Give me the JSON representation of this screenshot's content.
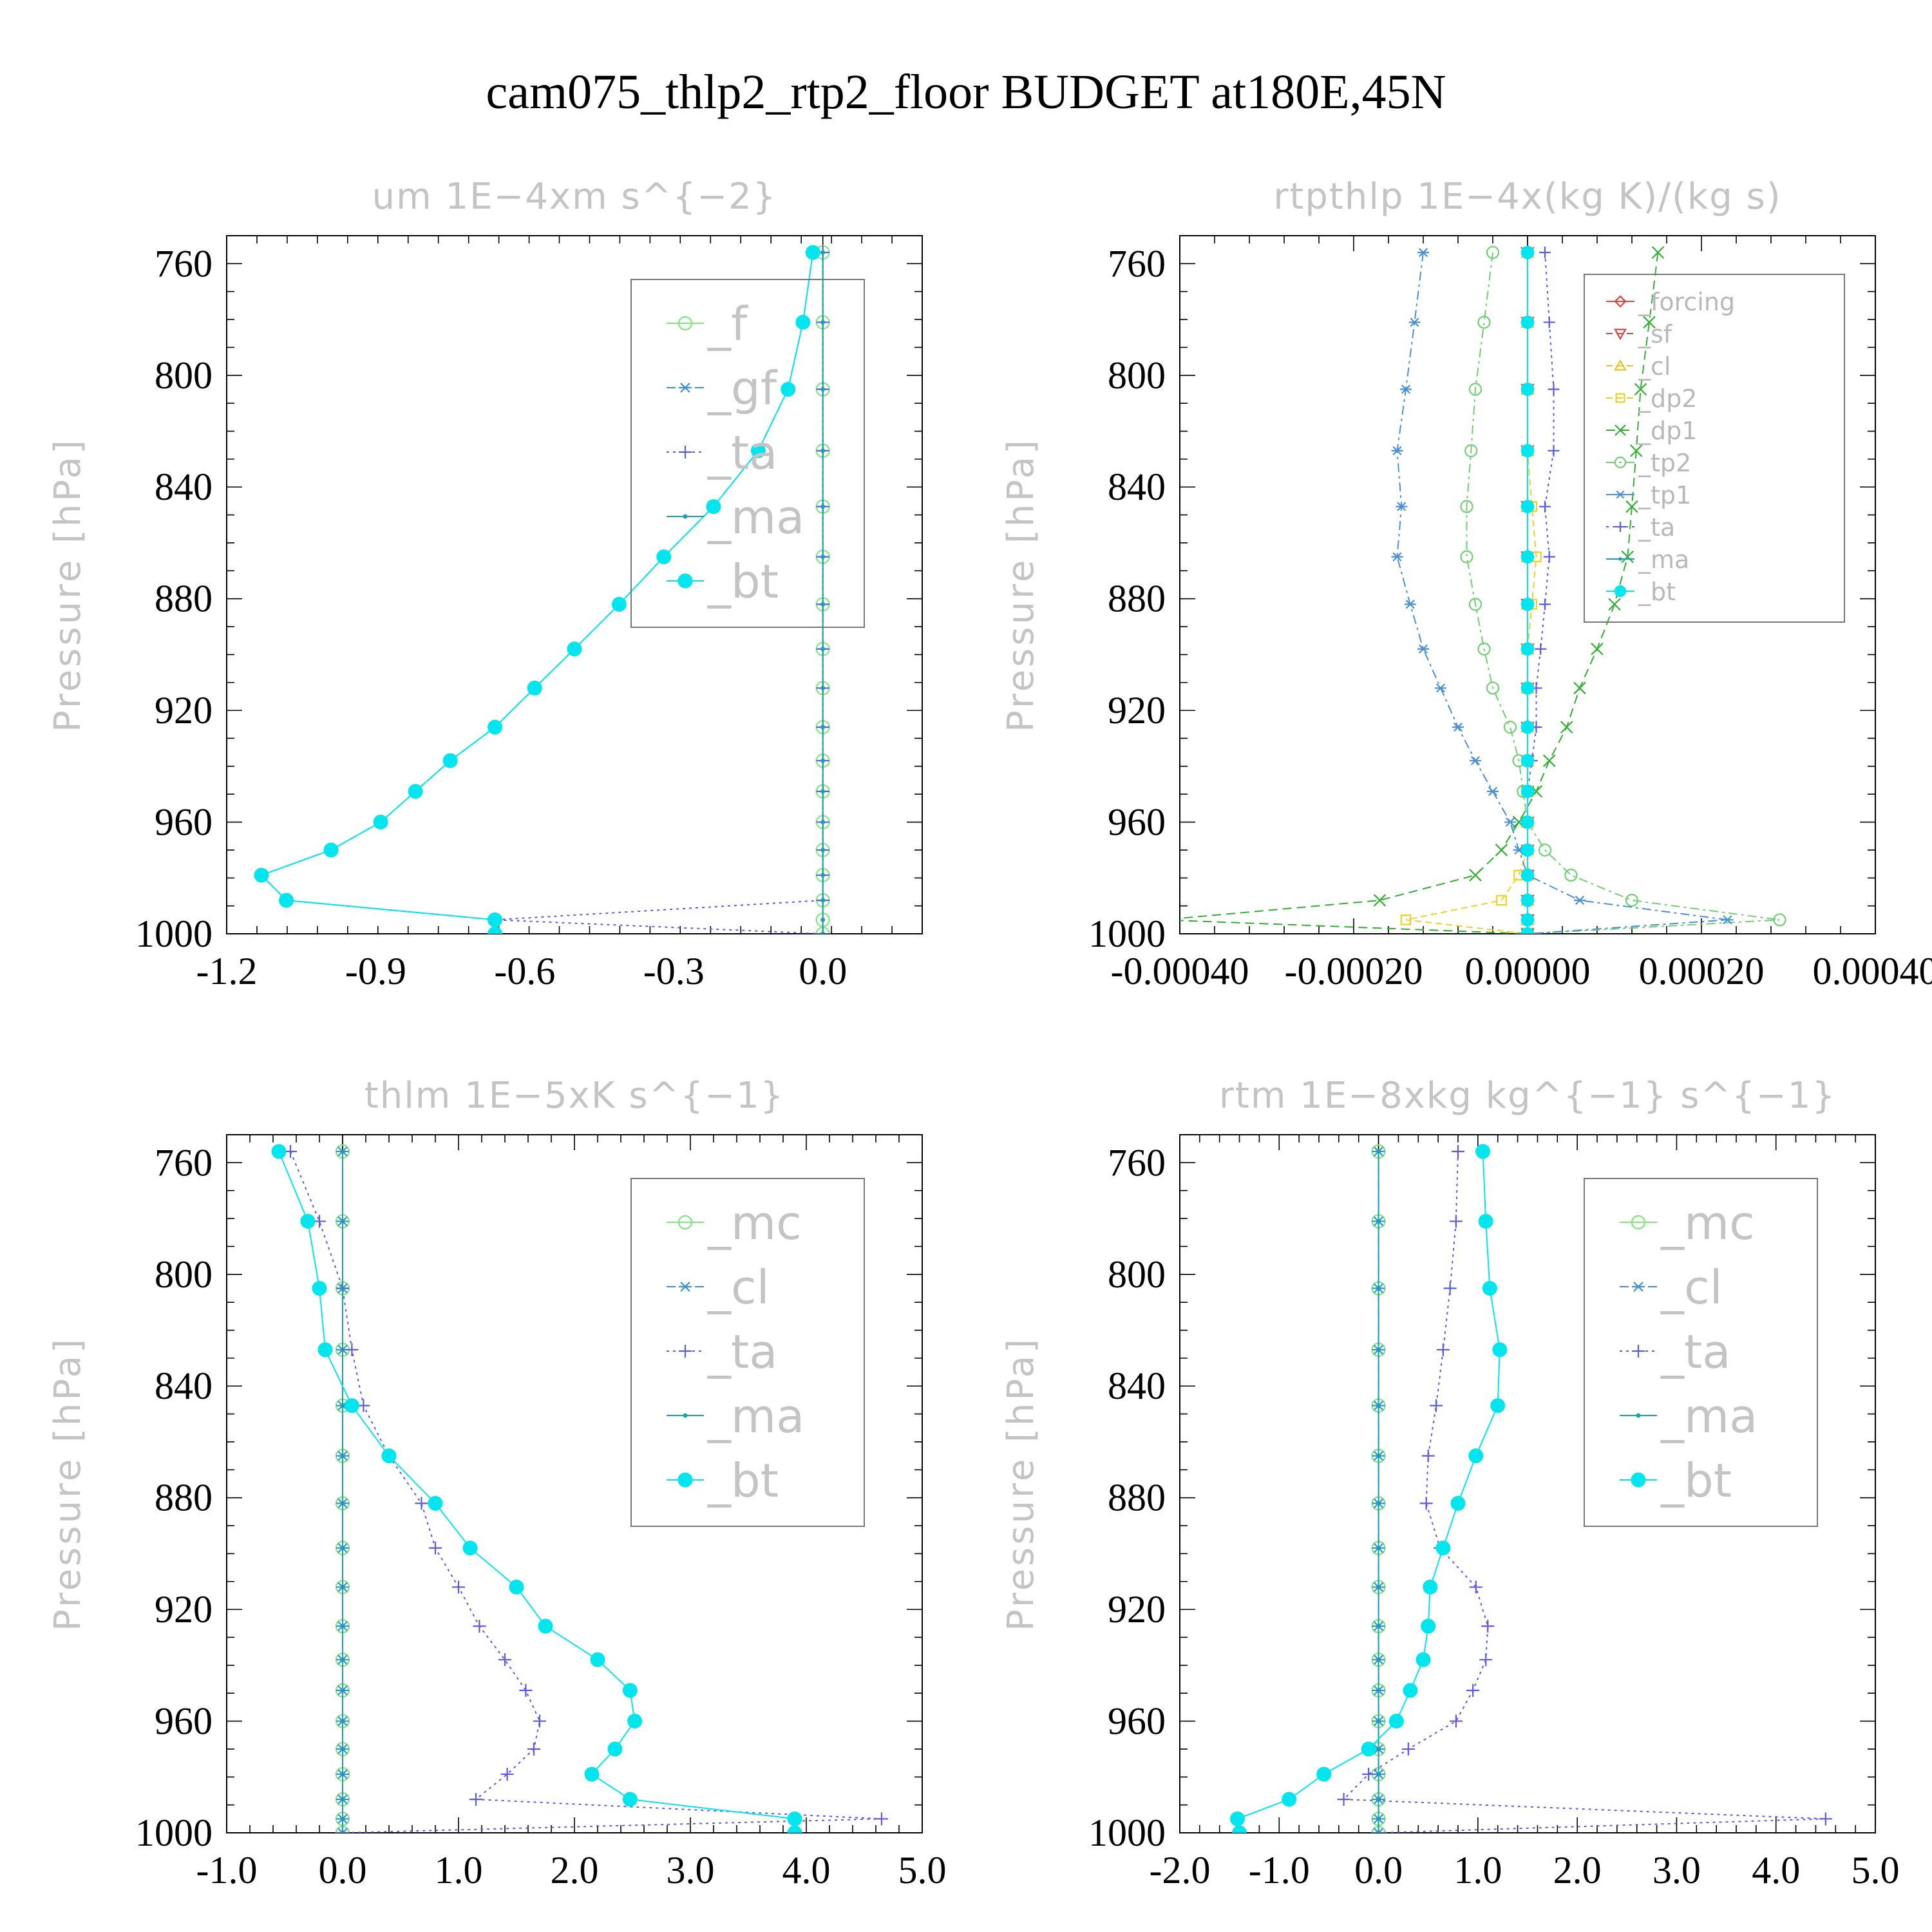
{
  "figure": {
    "title": "cam075_thlp2_rtp2_floor  BUDGET at180E,45N"
  },
  "chart_data": [
    {
      "type": "line",
      "title": "um   1E−4xm s^{−2}",
      "ylabel": "Pressure [hPa]",
      "xlabel": "",
      "xlim": [
        -1.2,
        0.2
      ],
      "ylim": [
        1000,
        750
      ],
      "xticks": [
        -1.2,
        -0.9,
        -0.6,
        -0.3,
        0.0
      ],
      "xtick_labels": [
        "-1.2",
        "-0.9",
        "-0.6",
        "-0.3",
        "0.0"
      ],
      "yticks": [
        760,
        800,
        840,
        880,
        920,
        960,
        1000
      ],
      "ytick_labels": [
        "760",
        "800",
        "840",
        "880",
        "920",
        "960",
        "1000"
      ],
      "legend_position": "top-right",
      "legend_style": "large",
      "pressure_levels": [
        756,
        781,
        805,
        827,
        847,
        865,
        882,
        898,
        912,
        926,
        938,
        949,
        960,
        970,
        979,
        988,
        995,
        1000
      ],
      "series": [
        {
          "name": "_f",
          "color": "#7ee87e",
          "marker": "circle-open",
          "dash": "",
          "values": [
            0,
            0,
            0,
            0,
            0,
            0,
            0,
            0,
            0,
            0,
            0,
            0,
            0,
            0,
            0,
            0,
            0,
            0
          ]
        },
        {
          "name": "_gf",
          "color": "#3b8fd6",
          "marker": "star",
          "dash": "14,8",
          "values": [
            -0.02,
            -0.04,
            -0.07,
            -0.13,
            -0.22,
            -0.32,
            -0.41,
            -0.5,
            -0.58,
            -0.66,
            -0.75,
            -0.82,
            -0.89,
            -0.99,
            -1.13,
            -1.08,
            -0.66,
            -0.66
          ]
        },
        {
          "name": "_ta",
          "color": "#5a5ae6",
          "marker": "plus",
          "dash": "4,6",
          "values": [
            0,
            0,
            0,
            0,
            0,
            0,
            0,
            0,
            0,
            0,
            0,
            0,
            0,
            0,
            0,
            0,
            -0.66,
            0
          ]
        },
        {
          "name": "_ma",
          "color": "#1aa0b0",
          "marker": "dot",
          "dash": "",
          "values": [
            0,
            0,
            0,
            0,
            0,
            0,
            0,
            0,
            0,
            0,
            0,
            0,
            0,
            0,
            0,
            0,
            0,
            0
          ]
        },
        {
          "name": "_bt",
          "color": "#00e5ee",
          "marker": "filled",
          "dash": "",
          "values": [
            -0.02,
            -0.04,
            -0.07,
            -0.13,
            -0.22,
            -0.32,
            -0.41,
            -0.5,
            -0.58,
            -0.66,
            -0.75,
            -0.82,
            -0.89,
            -0.99,
            -1.13,
            -1.08,
            -0.66,
            -0.66
          ]
        }
      ]
    },
    {
      "type": "line",
      "title": "rtpthlp   1E−4x(kg K)/(kg s)",
      "ylabel": "Pressure [hPa]",
      "xlabel": "",
      "xlim": [
        -0.0004,
        0.0004
      ],
      "ylim": [
        1000,
        750
      ],
      "xticks": [
        -0.0004,
        -0.0002,
        0.0,
        0.0002,
        0.0004
      ],
      "xtick_labels": [
        "-0.00040",
        "-0.00020",
        "0.00000",
        "0.00020",
        "0.00040"
      ],
      "yticks": [
        760,
        800,
        840,
        880,
        920,
        960,
        1000
      ],
      "ytick_labels": [
        "760",
        "800",
        "840",
        "880",
        "920",
        "960",
        "1000"
      ],
      "legend_position": "top-right",
      "legend_style": "small",
      "pressure_levels": [
        756,
        781,
        805,
        827,
        847,
        865,
        882,
        898,
        912,
        926,
        938,
        949,
        960,
        970,
        979,
        988,
        995,
        1000
      ],
      "series": [
        {
          "name": "_forcing",
          "color": "#e04040",
          "marker": "diamond-open",
          "dash": "",
          "values": [
            0,
            0,
            0,
            0,
            0,
            0,
            0,
            0,
            0,
            0,
            0,
            0,
            0,
            0,
            0,
            0,
            0,
            0
          ]
        },
        {
          "name": "_sf",
          "color": "#e04040",
          "marker": "triangle-down-open",
          "dash": "10,6",
          "values": [
            0,
            0,
            0,
            0,
            0,
            0,
            0,
            0,
            0,
            0,
            0,
            0,
            0,
            0,
            0,
            0,
            0,
            0
          ]
        },
        {
          "name": "_cl",
          "color": "#f0c020",
          "marker": "triangle-open",
          "dash": "10,6",
          "values": [
            0,
            0,
            0,
            0,
            0,
            0,
            0,
            0,
            0,
            0,
            0,
            0,
            0,
            0,
            0,
            0,
            0,
            0
          ]
        },
        {
          "name": "_dp2",
          "color": "#f0d020",
          "marker": "square-open",
          "dash": "10,6",
          "values": [
            0,
            0,
            0,
            0,
            5e-06,
            1e-05,
            5e-06,
            0,
            0,
            0,
            0,
            0,
            0,
            0,
            -1e-05,
            -3e-05,
            -0.00014,
            0
          ]
        },
        {
          "name": "_dp1",
          "color": "#30b030",
          "marker": "x",
          "dash": "14,8",
          "values": [
            0.00015,
            0.00014,
            0.00013,
            0.000125,
            0.00012,
            0.000115,
            0.0001,
            8e-05,
            6e-05,
            4.5e-05,
            2.5e-05,
            1e-05,
            -1e-05,
            -3e-05,
            -6e-05,
            -0.00017,
            -0.00042,
            0
          ]
        },
        {
          "name": "_tp2",
          "color": "#70d070",
          "marker": "circle-open",
          "dash": "14,6,4,6",
          "values": [
            -4e-05,
            -5e-05,
            -6e-05,
            -6.5e-05,
            -7e-05,
            -7e-05,
            -6e-05,
            -5e-05,
            -4e-05,
            -2e-05,
            -1e-05,
            -5e-06,
            0,
            2e-05,
            5e-05,
            0.00012,
            0.00029,
            0
          ]
        },
        {
          "name": "_tp1",
          "color": "#4a90d9",
          "marker": "star",
          "dash": "14,6,4,6",
          "values": [
            -0.00012,
            -0.00013,
            -0.00014,
            -0.00015,
            -0.000145,
            -0.00015,
            -0.000135,
            -0.00012,
            -0.0001,
            -8e-05,
            -6e-05,
            -4e-05,
            -2e-05,
            -1e-05,
            0,
            6e-05,
            0.00023,
            0
          ]
        },
        {
          "name": "_ta",
          "color": "#5a5ae6",
          "marker": "plus",
          "dash": "4,6",
          "values": [
            2e-05,
            2.5e-05,
            3e-05,
            3e-05,
            2e-05,
            2.5e-05,
            2e-05,
            1.5e-05,
            1e-05,
            1e-05,
            5e-06,
            0,
            0,
            0,
            0,
            0,
            0,
            0
          ]
        },
        {
          "name": "_ma",
          "color": "#1aa0b0",
          "marker": "dot",
          "dash": "",
          "values": [
            0,
            0,
            0,
            0,
            0,
            0,
            0,
            0,
            0,
            0,
            0,
            0,
            0,
            0,
            0,
            0,
            0,
            0
          ]
        },
        {
          "name": "_bt",
          "color": "#00e5ee",
          "marker": "filled",
          "dash": "",
          "values": [
            0,
            0,
            0,
            0,
            0,
            0,
            0,
            0,
            0,
            0,
            0,
            0,
            0,
            0,
            0,
            0,
            0,
            0
          ]
        }
      ]
    },
    {
      "type": "line",
      "title": "thlm   1E−5xK s^{−1}",
      "ylabel": "Pressure [hPa]",
      "xlabel": "",
      "xlim": [
        -1.0,
        5.0
      ],
      "ylim": [
        1000,
        750
      ],
      "xticks": [
        -1.0,
        0.0,
        1.0,
        2.0,
        3.0,
        4.0,
        5.0
      ],
      "xtick_labels": [
        "-1.0",
        "0.0",
        "1.0",
        "2.0",
        "3.0",
        "4.0",
        "5.0"
      ],
      "yticks": [
        760,
        800,
        840,
        880,
        920,
        960,
        1000
      ],
      "ytick_labels": [
        "760",
        "800",
        "840",
        "880",
        "920",
        "960",
        "1000"
      ],
      "legend_position": "top-right",
      "legend_style": "large",
      "pressure_levels": [
        756,
        781,
        805,
        827,
        847,
        865,
        882,
        898,
        912,
        926,
        938,
        949,
        960,
        970,
        979,
        988,
        995,
        1000
      ],
      "series": [
        {
          "name": "_mc",
          "color": "#7ee87e",
          "marker": "circle-open",
          "dash": "",
          "values": [
            0,
            0,
            0,
            0,
            0,
            0,
            0,
            0,
            0,
            0,
            0,
            0,
            0,
            0,
            0,
            0,
            0,
            0
          ]
        },
        {
          "name": "_cl",
          "color": "#3b8fd6",
          "marker": "star",
          "dash": "14,8",
          "values": [
            0,
            0,
            0,
            0,
            0,
            0,
            0,
            0,
            0,
            0,
            0,
            0,
            0,
            0,
            0,
            0,
            0,
            0
          ]
        },
        {
          "name": "_ta",
          "color": "#5a5ae6",
          "marker": "plus",
          "dash": "4,6",
          "values": [
            -0.45,
            -0.2,
            0.0,
            0.08,
            0.18,
            0.4,
            0.68,
            0.8,
            1.0,
            1.18,
            1.4,
            1.58,
            1.7,
            1.65,
            1.42,
            1.15,
            4.65,
            0
          ]
        },
        {
          "name": "_ma",
          "color": "#1aa0b0",
          "marker": "dot",
          "dash": "",
          "values": [
            0,
            0,
            0,
            0,
            0,
            0,
            0,
            0,
            0,
            0,
            0,
            0,
            0,
            0,
            0,
            0,
            0,
            0
          ]
        },
        {
          "name": "_bt",
          "color": "#00e5ee",
          "marker": "filled",
          "dash": "",
          "values": [
            -0.55,
            -0.3,
            -0.2,
            -0.15,
            0.08,
            0.4,
            0.8,
            1.1,
            1.5,
            1.75,
            2.2,
            2.48,
            2.52,
            2.35,
            2.15,
            2.48,
            3.9,
            3.9
          ]
        }
      ]
    },
    {
      "type": "line",
      "title": "rtm   1E−8xkg kg^{−1} s^{−1}",
      "ylabel": "Pressure [hPa]",
      "xlabel": "",
      "xlim": [
        -2.0,
        5.0
      ],
      "ylim": [
        1000,
        750
      ],
      "xticks": [
        -2.0,
        -1.0,
        0.0,
        1.0,
        2.0,
        3.0,
        4.0,
        5.0
      ],
      "xtick_labels": [
        "-2.0",
        "-1.0",
        "0.0",
        "1.0",
        "2.0",
        "3.0",
        "4.0",
        "5.0"
      ],
      "yticks": [
        760,
        800,
        840,
        880,
        920,
        960,
        1000
      ],
      "ytick_labels": [
        "760",
        "800",
        "840",
        "880",
        "920",
        "960",
        "1000"
      ],
      "legend_position": "top-right",
      "legend_style": "large",
      "pressure_levels": [
        756,
        781,
        805,
        827,
        847,
        865,
        882,
        898,
        912,
        926,
        938,
        949,
        960,
        970,
        979,
        988,
        995,
        1000
      ],
      "series": [
        {
          "name": "_mc",
          "color": "#7ee87e",
          "marker": "circle-open",
          "dash": "",
          "values": [
            0,
            0,
            0,
            0,
            0,
            0,
            0,
            0,
            0,
            0,
            0,
            0,
            0,
            0,
            0,
            0,
            0,
            0
          ]
        },
        {
          "name": "_cl",
          "color": "#3b8fd6",
          "marker": "star",
          "dash": "14,8",
          "values": [
            0,
            0,
            0,
            0,
            0,
            0,
            0,
            0,
            0,
            0,
            0,
            0,
            0,
            0,
            0,
            0,
            0,
            0
          ]
        },
        {
          "name": "_ta",
          "color": "#5a5ae6",
          "marker": "plus",
          "dash": "4,6",
          "values": [
            0.8,
            0.78,
            0.72,
            0.65,
            0.58,
            0.5,
            0.48,
            0.62,
            0.98,
            1.1,
            1.08,
            0.95,
            0.78,
            0.3,
            -0.1,
            -0.35,
            4.5,
            0
          ]
        },
        {
          "name": "_ma",
          "color": "#1aa0b0",
          "marker": "dot",
          "dash": "",
          "values": [
            0,
            0,
            0,
            0,
            0,
            0,
            0,
            0,
            0,
            0,
            0,
            0,
            0,
            0,
            0,
            0,
            0,
            0
          ]
        },
        {
          "name": "_bt",
          "color": "#00e5ee",
          "marker": "filled",
          "dash": "",
          "values": [
            1.05,
            1.08,
            1.12,
            1.22,
            1.2,
            0.98,
            0.8,
            0.65,
            0.52,
            0.5,
            0.45,
            0.32,
            0.18,
            -0.1,
            -0.55,
            -0.9,
            -1.42,
            -1.4
          ]
        }
      ]
    }
  ]
}
